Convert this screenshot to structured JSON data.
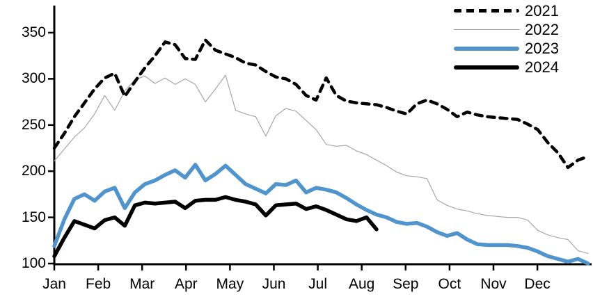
{
  "chart_data": {
    "type": "line",
    "title": "",
    "x_unit": "weekly",
    "grid": false,
    "legend_position": "top-right",
    "x_axis": {
      "labels": [
        "Jan",
        "Feb",
        "Mar",
        "Apr",
        "May",
        "Jun",
        "Jul",
        "Aug",
        "Sep",
        "Oct",
        "Nov",
        "Dec"
      ]
    },
    "y_axis": {
      "ticks": [
        100,
        150,
        200,
        250,
        300,
        350
      ],
      "min": 100,
      "max": 350
    },
    "series": [
      {
        "name": "2021",
        "color": "#000000",
        "line_style": "dashed",
        "thickness": "thick",
        "values": [
          225,
          241,
          259,
          274,
          289,
          301,
          306,
          281,
          297,
          312,
          325,
          340,
          337,
          322,
          321,
          342,
          331,
          327,
          323,
          317,
          315,
          308,
          302,
          300,
          294,
          282,
          277,
          301,
          282,
          276,
          274,
          273,
          272,
          269,
          265,
          262,
          273,
          277,
          273,
          267,
          259,
          264,
          261,
          259,
          258,
          257,
          256,
          251,
          245,
          231,
          220,
          204,
          212,
          216
        ]
      },
      {
        "name": "2022",
        "color": "#a6a6a6",
        "line_style": "solid",
        "thickness": "thin",
        "values": [
          211,
          224,
          237,
          247,
          262,
          282,
          266,
          287,
          299,
          303,
          295,
          301,
          294,
          300,
          294,
          275,
          289,
          304,
          266,
          262,
          259,
          238,
          260,
          268,
          265,
          255,
          245,
          229,
          227,
          228,
          222,
          218,
          212,
          206,
          199,
          195,
          194,
          192,
          169,
          163,
          159,
          157,
          154,
          152,
          151,
          150,
          150,
          147,
          136,
          131,
          128,
          126,
          114,
          111
        ]
      },
      {
        "name": "2023",
        "color": "#4f94cd",
        "line_style": "solid",
        "thickness": "thick",
        "values": [
          119,
          148,
          170,
          175,
          168,
          178,
          182,
          160,
          177,
          186,
          190,
          196,
          201,
          193,
          207,
          190,
          197,
          206,
          196,
          186,
          181,
          176,
          186,
          185,
          190,
          177,
          182,
          180,
          177,
          171,
          164,
          158,
          153,
          150,
          145,
          143,
          144,
          140,
          134,
          130,
          133,
          126,
          121,
          120,
          120,
          120,
          119,
          117,
          113,
          108,
          105,
          102,
          105,
          100
        ]
      },
      {
        "name": "2024",
        "color": "#000000",
        "line_style": "solid",
        "thickness": "thick",
        "values": [
          108,
          128,
          146,
          142,
          138,
          147,
          150,
          141,
          163,
          166,
          165,
          166,
          167,
          160,
          168,
          169,
          169,
          172,
          169,
          167,
          164,
          152,
          163,
          164,
          165,
          159,
          162,
          158,
          153,
          148,
          146,
          150,
          137
        ]
      }
    ]
  }
}
